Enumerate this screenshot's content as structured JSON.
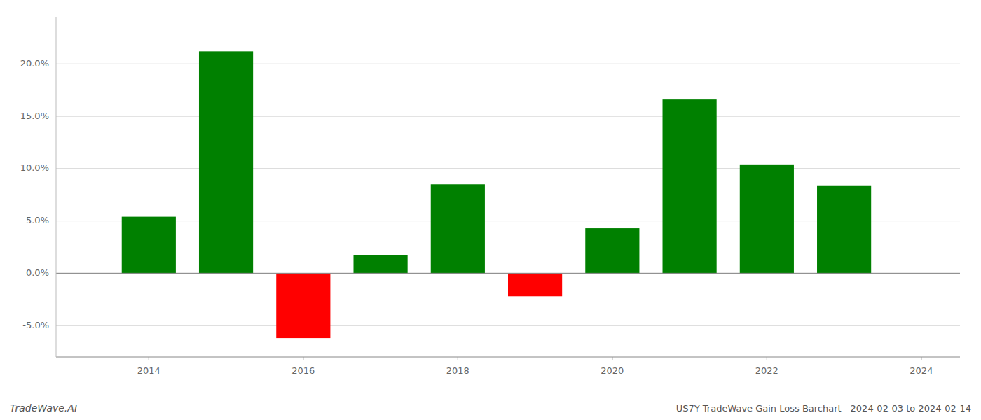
{
  "chart_data": {
    "type": "bar",
    "title": "US7Y TradeWave Gain Loss Barchart - 2024-02-03 to 2024-02-14",
    "annotations": [
      "TradeWave.AI"
    ],
    "x": [
      2014,
      2015,
      2016,
      2017,
      2018,
      2019,
      2020,
      2021,
      2022,
      2023
    ],
    "values": [
      0.054,
      0.212,
      -0.062,
      0.017,
      0.085,
      -0.022,
      0.043,
      0.166,
      0.104,
      0.084
    ],
    "colors": [
      "#008000",
      "#008000",
      "#ff0000",
      "#008000",
      "#008000",
      "#ff0000",
      "#008000",
      "#008000",
      "#008000",
      "#008000"
    ],
    "xlim": [
      2012.8,
      2024.5
    ],
    "xticks": [
      2014,
      2016,
      2018,
      2020,
      2022,
      2024
    ],
    "ylim": [
      -0.08,
      0.245
    ],
    "yticks": [
      {
        "value": -0.05,
        "label": "-5.0%"
      },
      {
        "value": 0.0,
        "label": "0.0%"
      },
      {
        "value": 0.05,
        "label": "5.0%"
      },
      {
        "value": 0.1,
        "label": "10.0%"
      },
      {
        "value": 0.15,
        "label": "15.0%"
      },
      {
        "value": 0.2,
        "label": "20.0%"
      }
    ],
    "grid": true
  }
}
